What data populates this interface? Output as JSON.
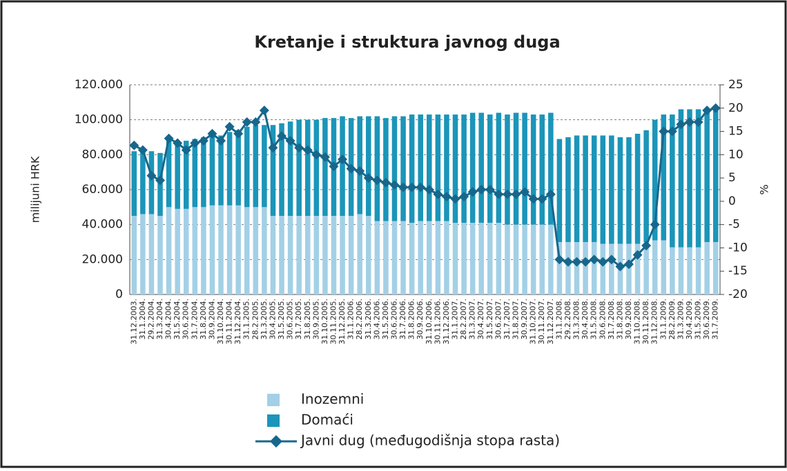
{
  "chart_data": {
    "type": "bar",
    "title": "Kretanje i struktura javnog duga",
    "ylabel": "milijuni HRK",
    "y2label": "%",
    "categories": [
      "31.12.2003.",
      "31.1.2004.",
      "29.2.2004.",
      "31.3.2004.",
      "30.4.2004.",
      "31.5.2004.",
      "30.6.2004.",
      "31.7.2004.",
      "31.8.2004.",
      "30.9.2004.",
      "31.10.2004.",
      "30.11.2004.",
      "31.12.2004.",
      "31.1.2005.",
      "28.2.2005.",
      "31.3.2005.",
      "30.4.2005.",
      "31.5.2005.",
      "30.6.2005.",
      "31.7.2005.",
      "31.8.2005.",
      "30.9.2005.",
      "31.10.2005.",
      "30.11.2005.",
      "31.12.2005.",
      "31.1.2006.",
      "28.2.2006.",
      "31.3.2006.",
      "30.4.2006.",
      "31.5.2006.",
      "30.6.2006.",
      "31.7.2006.",
      "31.8.2006.",
      "30.9.2006.",
      "31.10.2006.",
      "30.11.2006.",
      "31.12.2006.",
      "31.1.2007.",
      "28.2.2007.",
      "31.3.2007.",
      "30.4.2007.",
      "31.5.2007.",
      "30.6.2007.",
      "31.7.2007.",
      "31.8.2007.",
      "30.9.2007.",
      "31.10.2007.",
      "30.11.2007.",
      "31.12.2007.",
      "31.1.2008.",
      "29.2.2008.",
      "31.3.2008.",
      "30.4.2008.",
      "31.5.2008.",
      "30.6.2008.",
      "31.7.2008.",
      "31.8.2008.",
      "30.9.2008.",
      "31.10.2008.",
      "30.11.2008.",
      "31.12.2008.",
      "31.1.2009.",
      "28.2.2009.",
      "31.3.2009.",
      "30.4.2009.",
      "31.5.2009.",
      "30.6.2009.",
      "31.7.2009."
    ],
    "series": [
      {
        "name": "Inozemni",
        "color": "#a3d0e6",
        "values": [
          45000,
          46000,
          46000,
          45000,
          50000,
          49000,
          49000,
          50000,
          50000,
          51000,
          51000,
          51000,
          51000,
          50000,
          50000,
          50000,
          45000,
          45000,
          45000,
          45000,
          45000,
          45000,
          45000,
          45000,
          45000,
          45000,
          46000,
          45000,
          42000,
          42000,
          42000,
          42000,
          41000,
          42000,
          42000,
          42000,
          42000,
          41000,
          41000,
          41000,
          41000,
          41000,
          41000,
          40000,
          40000,
          40000,
          40000,
          40000,
          40000,
          30000,
          30000,
          30000,
          30000,
          30000,
          29000,
          29000,
          29000,
          29000,
          29000,
          30000,
          31000,
          31000,
          27000,
          27000,
          27000,
          27000,
          30000,
          30000
        ]
      },
      {
        "name": "Domaći",
        "color": "#1b95b9",
        "values": [
          37000,
          36000,
          36000,
          36000,
          38000,
          38000,
          39000,
          39000,
          40000,
          40000,
          40000,
          42000,
          43000,
          46000,
          47000,
          47000,
          52000,
          53000,
          54000,
          55000,
          55000,
          55000,
          56000,
          56000,
          57000,
          56000,
          56000,
          57000,
          60000,
          59000,
          60000,
          60000,
          62000,
          61000,
          61000,
          61000,
          61000,
          62000,
          62000,
          63000,
          63000,
          62000,
          63000,
          63000,
          64000,
          64000,
          63000,
          63000,
          64000,
          59000,
          60000,
          61000,
          61000,
          61000,
          62000,
          62000,
          61000,
          61000,
          63000,
          64000,
          69000,
          72000,
          76000,
          79000,
          79000,
          79000,
          76000,
          76000
        ]
      },
      {
        "name": "Javni dug (međugodišnja stopa rasta)",
        "color": "#17678c",
        "axis": "y2",
        "values": [
          12,
          11,
          5.5,
          4.5,
          13.5,
          12.5,
          11,
          12.5,
          13,
          14.5,
          13,
          16,
          14.5,
          17,
          17,
          19.5,
          11.5,
          14,
          13,
          11.5,
          11,
          10,
          9.5,
          7.5,
          9,
          7,
          6.5,
          5,
          4.5,
          4,
          3.5,
          3,
          3,
          3,
          2.5,
          1.5,
          1,
          0.5,
          1,
          2,
          2.5,
          2.5,
          1.5,
          1.5,
          1.5,
          2,
          0.5,
          0.5,
          1.5,
          -12.5,
          -13,
          -13,
          -13,
          -12.5,
          -13,
          -12.5,
          -14,
          -13.5,
          -11.5,
          -9.5,
          -5,
          15,
          15,
          16.5,
          17,
          17,
          19.5,
          20
        ]
      }
    ],
    "ylim": [
      0,
      120000
    ],
    "yticks": [
      0,
      {
        "value": 20000,
        "label": "20.000"
      },
      {
        "value": 40000,
        "label": "40.000"
      },
      {
        "value": 60000,
        "label": "60.000"
      },
      {
        "value": 80000,
        "label": "80.000"
      },
      {
        "value": 100000,
        "label": "100.000"
      },
      {
        "value": 120000,
        "label": "120.000"
      }
    ],
    "y2lim": [
      -20,
      25
    ],
    "y2ticks": [
      -20,
      -15,
      -10,
      -5,
      0,
      5,
      10,
      15,
      20,
      25
    ],
    "grid": true
  }
}
